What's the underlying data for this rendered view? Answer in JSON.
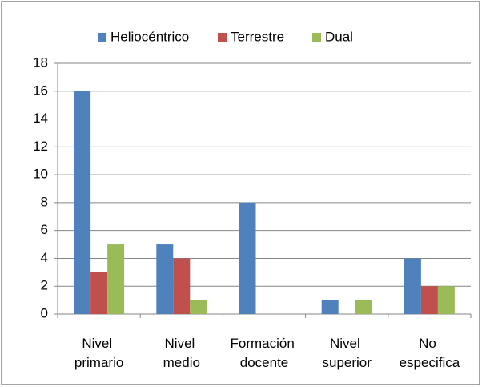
{
  "chart_data": {
    "type": "bar",
    "categories": [
      "Nivel primario",
      "Nivel medio",
      "Formación docente",
      "Nivel superior",
      "No especifica"
    ],
    "series": [
      {
        "name": "Heliocéntrico",
        "color": "#4f81bd",
        "values": [
          16,
          5,
          8,
          1,
          4
        ]
      },
      {
        "name": "Terrestre",
        "color": "#c0504d",
        "values": [
          3,
          4,
          0,
          0,
          2
        ]
      },
      {
        "name": "Dual",
        "color": "#9bbb59",
        "values": [
          5,
          1,
          0,
          1,
          2
        ]
      }
    ],
    "ylim": [
      0,
      18
    ],
    "yticks": [
      0,
      2,
      4,
      6,
      8,
      10,
      12,
      14,
      16,
      18
    ],
    "grid": true,
    "legend": "top"
  }
}
